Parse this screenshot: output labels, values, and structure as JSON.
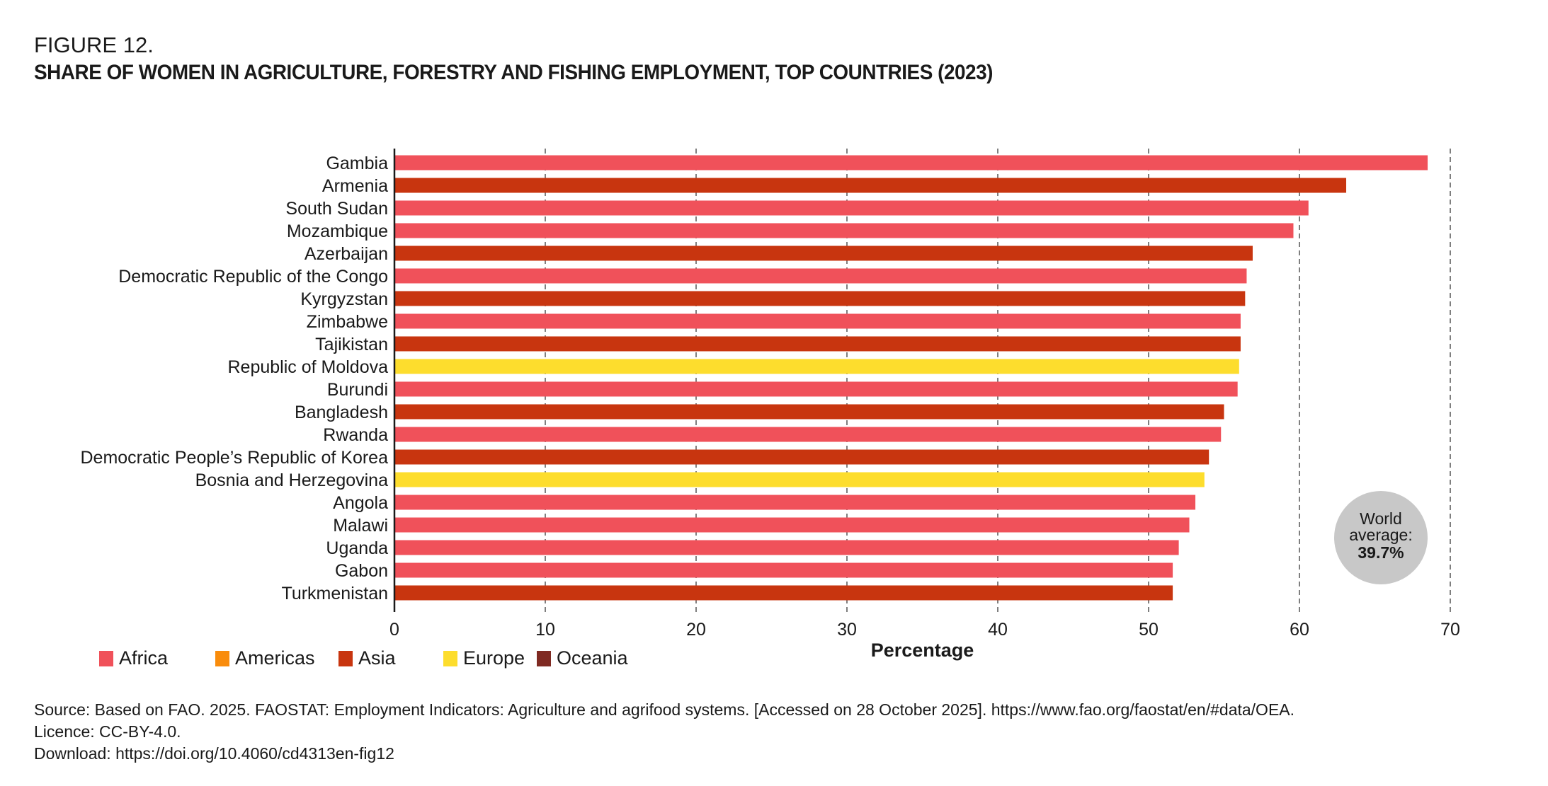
{
  "figure_label": "FIGURE 12.",
  "figure_title": "SHARE OF WOMEN IN AGRICULTURE, FORESTRY AND FISHING EMPLOYMENT, TOP COUNTRIES (2023)",
  "colors": {
    "Africa": "#f0515a",
    "Americas": "#f98c0c",
    "Asia": "#c8350f",
    "Europe": "#fddd2d",
    "Oceania": "#7f2a22",
    "annotation_bubble": "#c8c8c8"
  },
  "chart_data": {
    "type": "bar",
    "orientation": "horizontal",
    "title": "SHARE OF WOMEN IN AGRICULTURE, FORESTRY AND FISHING EMPLOYMENT, TOP COUNTRIES (2023)",
    "xlabel": "Percentage",
    "ylabel": "",
    "xlim": [
      0,
      70
    ],
    "xticks": [
      0,
      10,
      20,
      30,
      40,
      50,
      60,
      70
    ],
    "grid": "vertical dashed",
    "legend_position": "bottom-left",
    "legend": [
      "Africa",
      "Americas",
      "Asia",
      "Europe",
      "Oceania"
    ],
    "categories": [
      "Gambia",
      "Armenia",
      "South Sudan",
      "Mozambique",
      "Azerbaijan",
      "Democratic Republic of the Congo",
      "Kyrgyzstan",
      "Zimbabwe",
      "Tajikistan",
      "Republic of Moldova",
      "Burundi",
      "Bangladesh",
      "Rwanda",
      "Democratic People’s Republic of Korea",
      "Bosnia and Herzegovina",
      "Angola",
      "Malawi",
      "Uganda",
      "Gabon",
      "Turkmenistan"
    ],
    "values": [
      68.5,
      63.1,
      60.6,
      59.6,
      56.9,
      56.5,
      56.4,
      56.1,
      56.1,
      56.0,
      55.9,
      55.0,
      54.8,
      54.0,
      53.7,
      53.1,
      52.7,
      52.0,
      51.6,
      51.6
    ],
    "regions": [
      "Africa",
      "Asia",
      "Africa",
      "Africa",
      "Asia",
      "Africa",
      "Asia",
      "Africa",
      "Asia",
      "Europe",
      "Africa",
      "Asia",
      "Africa",
      "Asia",
      "Europe",
      "Africa",
      "Africa",
      "Africa",
      "Africa",
      "Asia"
    ],
    "annotation": {
      "line1": "World",
      "line2": "average:",
      "value": "39.7%"
    }
  },
  "source": {
    "line1": "Source: Based on FAO. 2025. FAOSTAT: Employment Indicators: Agriculture and agrifood systems. [Accessed on 28 October 2025]. https://www.fao.org/faostat/en/#data/OEA.",
    "line2": "Licence: CC-BY-4.0.",
    "line3": "Download: https://doi.org/10.4060/cd4313en-fig12"
  }
}
